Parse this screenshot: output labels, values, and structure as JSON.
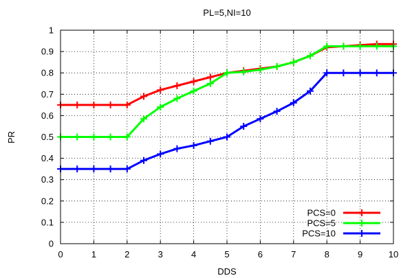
{
  "chart_data": {
    "type": "line",
    "title": "PL=5,NI=10",
    "xlabel": "DDS",
    "ylabel": "PR",
    "xlim": [
      0,
      10
    ],
    "ylim": [
      0,
      1
    ],
    "xticks": [
      0,
      1,
      2,
      3,
      4,
      5,
      6,
      7,
      8,
      9,
      10
    ],
    "yticks": [
      0,
      0.1,
      0.2,
      0.3,
      0.4,
      0.5,
      0.6,
      0.7,
      0.8,
      0.9,
      1
    ],
    "grid": "dotted",
    "legend_position": "bottom-right",
    "x": [
      0,
      0.5,
      1,
      1.5,
      2,
      2.5,
      3,
      3.5,
      4,
      4.5,
      5,
      5.5,
      6,
      6.5,
      7,
      7.5,
      8,
      8.5,
      9,
      9.5,
      10
    ],
    "series": [
      {
        "name": "PCS=0",
        "color": "#ff0000",
        "values": [
          0.65,
          0.65,
          0.65,
          0.65,
          0.65,
          0.69,
          0.72,
          0.74,
          0.76,
          0.78,
          0.8,
          0.81,
          0.82,
          0.83,
          0.85,
          0.88,
          0.92,
          0.925,
          0.93,
          0.935,
          0.935
        ]
      },
      {
        "name": "PCS=5",
        "color": "#00ff00",
        "values": [
          0.5,
          0.5,
          0.5,
          0.5,
          0.5,
          0.585,
          0.64,
          0.68,
          0.715,
          0.75,
          0.8,
          0.805,
          0.815,
          0.83,
          0.85,
          0.88,
          0.925,
          0.925,
          0.925,
          0.925,
          0.925
        ]
      },
      {
        "name": "PCS=10",
        "color": "#0000ff",
        "values": [
          0.35,
          0.35,
          0.35,
          0.35,
          0.35,
          0.39,
          0.42,
          0.445,
          0.46,
          0.48,
          0.5,
          0.55,
          0.585,
          0.62,
          0.66,
          0.715,
          0.8,
          0.8,
          0.8,
          0.8,
          0.8
        ]
      }
    ]
  }
}
